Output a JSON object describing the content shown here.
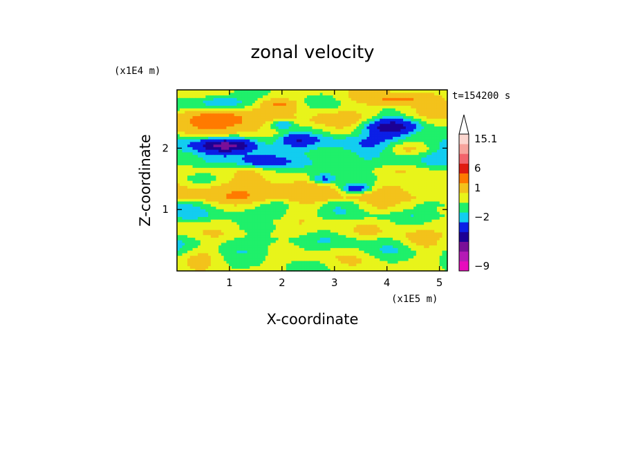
{
  "chart_data": {
    "type": "heatmap",
    "title": "zonal velocity",
    "xlabel": "X-coordinate",
    "ylabel": "Z-coordinate",
    "x_unit": "(x1E5 m)",
    "y_unit": "(x1E4 m)",
    "time_label": "t=154200 s",
    "xlim": [
      0,
      5.15
    ],
    "ylim": [
      0,
      2.95
    ],
    "x_ticks": [
      1,
      2,
      3,
      4,
      5
    ],
    "y_ticks": [
      1,
      2
    ],
    "colorbar": {
      "bands": [
        {
          "value": -12,
          "color": "#e70bbd"
        },
        {
          "value": -10,
          "color": "#b51ab5"
        },
        {
          "value": -8,
          "color": "#7a0f98"
        },
        {
          "value": -6,
          "color": "#1c0095"
        },
        {
          "value": -4,
          "color": "#0b1fe6"
        },
        {
          "value": -2,
          "color": "#12cdf0"
        },
        {
          "value": -1,
          "color": "#1ff06a"
        },
        {
          "value": 0,
          "color": "#e8f41a"
        },
        {
          "value": 1,
          "color": "#f3c21b"
        },
        {
          "value": 3,
          "color": "#ff7a00"
        },
        {
          "value": 6,
          "color": "#e01b10"
        },
        {
          "value": 9,
          "color": "#f2636b"
        },
        {
          "value": 12,
          "color": "#f7a39c"
        },
        {
          "value": 15.1,
          "color": "#fcd6cf"
        }
      ],
      "labels": [
        "15.1",
        "6",
        "1",
        "−2",
        "−9"
      ],
      "overflow_color": "#ffffff"
    },
    "bands": [
      {
        "z": 2.85,
        "u": 0.5
      },
      {
        "z": 2.72,
        "u": 0.2
      },
      {
        "z": 2.5,
        "u": 1.5
      },
      {
        "z": 2.3,
        "u": 0.5
      },
      {
        "z": 2.1,
        "u": -1.5
      },
      {
        "z": 1.85,
        "u": -1
      },
      {
        "z": 1.55,
        "u": 0.3
      },
      {
        "z": 1.3,
        "u": 1.2
      },
      {
        "z": 1.0,
        "u": -0.8
      },
      {
        "z": 0.7,
        "u": 0.4
      },
      {
        "z": 0.4,
        "u": -0.6
      },
      {
        "z": 0.15,
        "u": 0.2
      }
    ],
    "features": [
      {
        "x": 0.85,
        "z": 2.45,
        "rx": 0.6,
        "rz": 0.18,
        "u": 4
      },
      {
        "x": 0.95,
        "z": 2.05,
        "rx": 0.5,
        "rz": 0.1,
        "u": -5
      },
      {
        "x": 0.8,
        "z": 2.75,
        "rx": 0.5,
        "rz": 0.12,
        "u": -3
      },
      {
        "x": 4.1,
        "z": 2.35,
        "rx": 0.55,
        "rz": 0.15,
        "u": -6
      },
      {
        "x": 4.2,
        "z": 2.8,
        "rx": 0.6,
        "rz": 0.1,
        "u": 3
      },
      {
        "x": 4.4,
        "z": 2.0,
        "rx": 0.5,
        "rz": 0.12,
        "u": 2.5
      },
      {
        "x": 2.0,
        "z": 2.4,
        "rx": 0.25,
        "rz": 0.08,
        "u": -3
      },
      {
        "x": 3.4,
        "z": 1.35,
        "rx": 0.3,
        "rz": 0.08,
        "u": -4
      },
      {
        "x": 2.8,
        "z": 1.5,
        "rx": 0.25,
        "rz": 0.1,
        "u": -3
      },
      {
        "x": 1.3,
        "z": 1.25,
        "rx": 0.7,
        "rz": 0.2,
        "u": 2
      },
      {
        "x": 3.9,
        "z": 1.05,
        "rx": 0.8,
        "rz": 0.15,
        "u": 1.5
      },
      {
        "x": 2.5,
        "z": 1.15,
        "rx": 0.4,
        "rz": 0.2,
        "u": 1.5
      },
      {
        "x": 1.6,
        "z": 1.8,
        "rx": 0.35,
        "rz": 0.1,
        "u": -2.5
      },
      {
        "x": 2.3,
        "z": 2.15,
        "rx": 0.3,
        "rz": 0.1,
        "u": -2.5
      },
      {
        "x": 4.6,
        "z": 0.5,
        "rx": 0.4,
        "rz": 0.2,
        "u": 1.5
      },
      {
        "x": 0.5,
        "z": 0.3,
        "rx": 0.4,
        "rz": 0.15,
        "u": 1.2
      },
      {
        "x": 3.0,
        "z": 0.35,
        "rx": 0.6,
        "rz": 0.15,
        "u": 0.8
      },
      {
        "x": 1.95,
        "z": 2.72,
        "rx": 0.3,
        "rz": 0.08,
        "u": 2.5
      },
      {
        "x": 2.4,
        "z": 2.55,
        "rx": 0.2,
        "rz": 0.07,
        "u": -1.5
      }
    ]
  }
}
